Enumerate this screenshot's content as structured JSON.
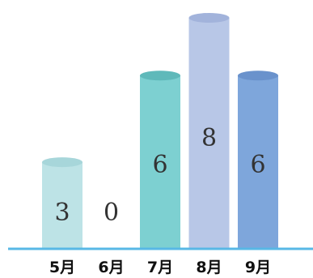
{
  "chart_data": {
    "type": "bar",
    "categories": [
      "5月",
      "6月",
      "7月",
      "8月",
      "9月"
    ],
    "values": [
      3,
      0,
      6,
      8,
      6
    ],
    "data_labels": [
      "3",
      "0",
      "6",
      "8",
      "6"
    ],
    "bar_colors": [
      "#bde3e6",
      "#bde3e6",
      "#7dd0d1",
      "#b8c7e7",
      "#7ea6db"
    ],
    "bar_top_colors": [
      "#a7d6da",
      "#a7d6da",
      "#5fb9ba",
      "#a2b3db",
      "#6a92cc"
    ],
    "axis_color": "#58b8e6",
    "ylim": [
      0,
      8
    ],
    "grid": false,
    "legend": "none"
  }
}
